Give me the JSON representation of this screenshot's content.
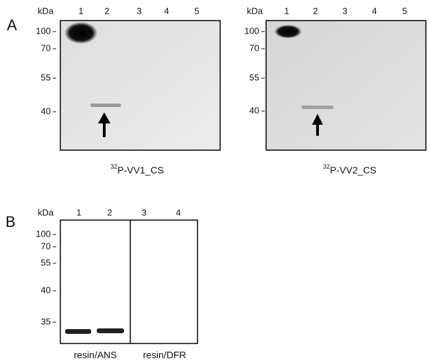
{
  "panel_a": {
    "label": "A",
    "blots": [
      {
        "unit": "kDa",
        "lanes": [
          "1",
          "2",
          "3",
          "4",
          "5"
        ],
        "markers": [
          "100",
          "70",
          "55",
          "40"
        ],
        "caption": {
          "isotope": "32",
          "text": "P-VV1_CS"
        }
      },
      {
        "unit": "kDa",
        "lanes": [
          "1",
          "2",
          "3",
          "4",
          "5"
        ],
        "markers": [
          "100",
          "70",
          "55",
          "40"
        ],
        "caption": {
          "isotope": "32",
          "text": "P-VV2_CS"
        }
      }
    ]
  },
  "panel_b": {
    "label": "B",
    "unit": "kDa",
    "lanes": [
      "1",
      "2",
      "3",
      "4"
    ],
    "markers": [
      "100",
      "70",
      "55",
      "40",
      "35"
    ],
    "groups": [
      "resin/ANS",
      "resin/DFR"
    ]
  }
}
